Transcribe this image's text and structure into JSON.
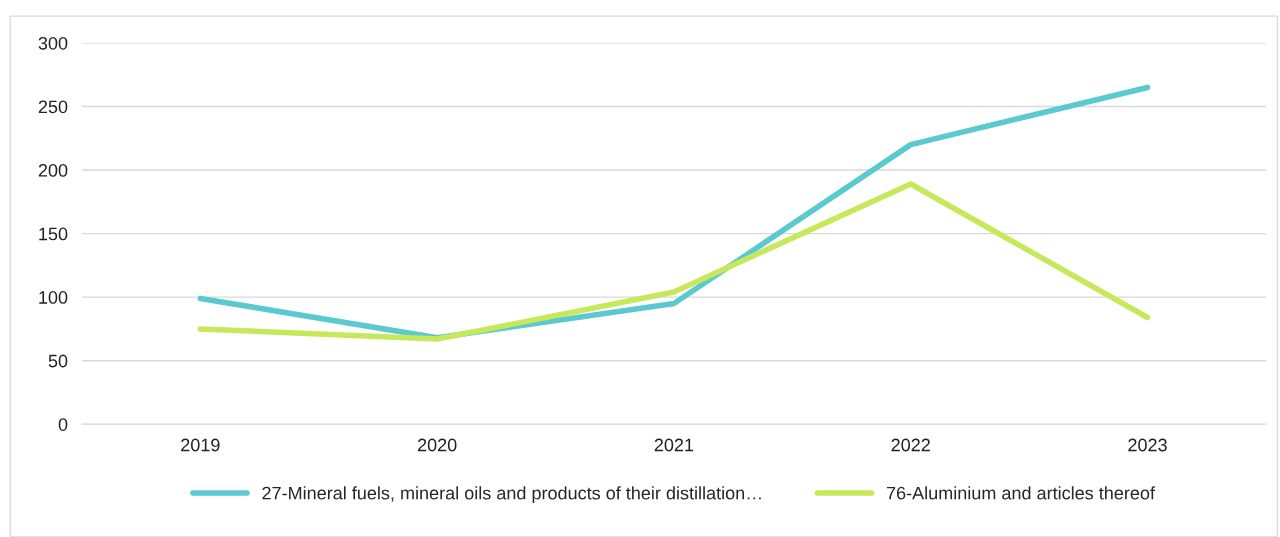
{
  "chart_data": {
    "type": "line",
    "categories": [
      "2019",
      "2020",
      "2021",
      "2022",
      "2023"
    ],
    "series": [
      {
        "name": "27-Mineral fuels, mineral oils and products of their distillation…",
        "color": "#5bc9d0",
        "values": [
          99,
          68,
          95,
          220,
          265
        ]
      },
      {
        "name": "76-Aluminium and articles thereof",
        "color": "#c6e85a",
        "values": [
          75,
          67,
          104,
          189,
          84
        ]
      }
    ],
    "ylim": [
      0,
      300
    ],
    "yticks": [
      0,
      50,
      100,
      150,
      200,
      250,
      300
    ],
    "grid": "y",
    "legend": "bottom",
    "marker": "none",
    "line_style": "solid"
  }
}
